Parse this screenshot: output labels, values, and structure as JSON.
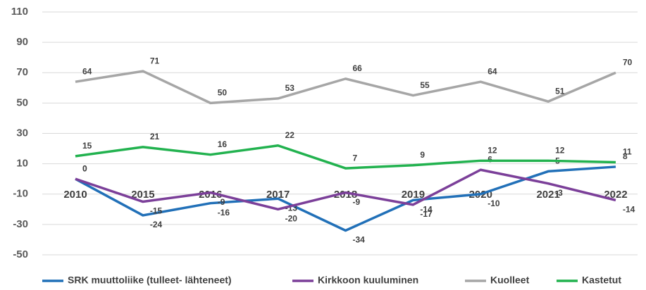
{
  "chart_data": {
    "type": "line",
    "categories": [
      "2010",
      "2015",
      "2016",
      "2017",
      "2018",
      "2019",
      "2020",
      "2021",
      "2022"
    ],
    "series": [
      {
        "name": "SRK muuttoliike (tulleet- lähteneet)",
        "color": "#2170b8",
        "values": [
          0,
          -24,
          -16,
          -13,
          -34,
          -14,
          -10,
          5,
          8
        ]
      },
      {
        "name": "Kirkkoon kuuluminen",
        "color": "#7b3f99",
        "values": [
          0,
          -15,
          -9,
          -20,
          -9,
          -17,
          6,
          -3,
          -14
        ]
      },
      {
        "name": "Kuolleet",
        "color": "#a6a6a6",
        "values": [
          64,
          71,
          50,
          53,
          66,
          55,
          64,
          51,
          70
        ]
      },
      {
        "name": "Kastetut",
        "color": "#22b24f",
        "values": [
          15,
          21,
          16,
          22,
          7,
          9,
          12,
          12,
          11
        ]
      }
    ],
    "ylim": [
      -50,
      110
    ],
    "yticks": [
      -50,
      -30,
      -10,
      10,
      30,
      50,
      70,
      90,
      110
    ],
    "grid": true,
    "legend": "bottom"
  }
}
